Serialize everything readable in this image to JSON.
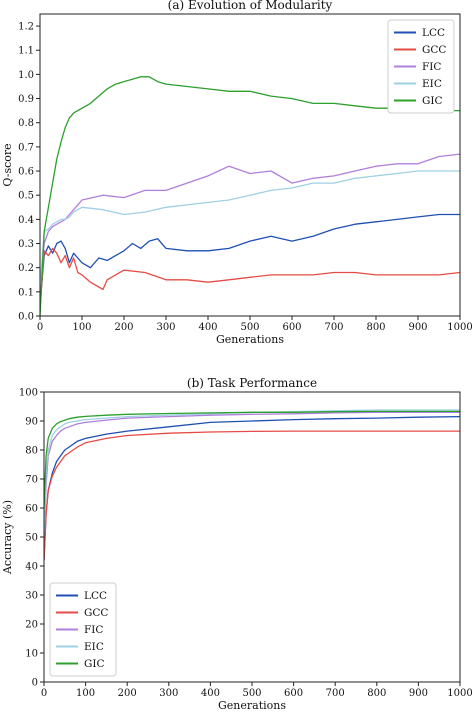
{
  "chart_data": [
    {
      "type": "line",
      "title": "(a) Evolution of Modularity",
      "xlabel": "Generations",
      "ylabel": "Q-score",
      "xlim": [
        0,
        1000
      ],
      "ylim": [
        0,
        1.25
      ],
      "xticks": [
        0,
        100,
        200,
        300,
        400,
        500,
        600,
        700,
        800,
        900,
        1000
      ],
      "yticks": [
        0.0,
        0.1,
        0.2,
        0.3,
        0.4,
        0.5,
        0.6,
        0.7,
        0.8,
        0.9,
        1.0,
        1.1,
        1.2
      ],
      "ytick_labels": [
        "0.0",
        "0.1",
        "0.2",
        "0.3",
        "0.4",
        "0.5",
        "0.6",
        "0.7",
        "0.8",
        "0.9",
        "1.0",
        "1.1",
        "1.2"
      ],
      "legend": "top-right",
      "grid": false,
      "series": [
        {
          "name": "LCC",
          "color": "#1f4fb4",
          "x": [
            0,
            10,
            20,
            30,
            40,
            50,
            60,
            70,
            80,
            90,
            100,
            120,
            140,
            160,
            180,
            200,
            220,
            240,
            260,
            280,
            300,
            350,
            400,
            450,
            500,
            550,
            600,
            650,
            700,
            750,
            800,
            850,
            900,
            950,
            1000
          ],
          "y": [
            0.05,
            0.25,
            0.29,
            0.26,
            0.3,
            0.31,
            0.28,
            0.22,
            0.26,
            0.24,
            0.22,
            0.2,
            0.24,
            0.23,
            0.25,
            0.27,
            0.3,
            0.28,
            0.31,
            0.32,
            0.28,
            0.27,
            0.27,
            0.28,
            0.31,
            0.33,
            0.31,
            0.33,
            0.36,
            0.38,
            0.39,
            0.4,
            0.41,
            0.42,
            0.42
          ]
        },
        {
          "name": "GCC",
          "color": "#e64c45",
          "x": [
            0,
            10,
            20,
            30,
            40,
            50,
            60,
            70,
            80,
            90,
            100,
            120,
            140,
            150,
            160,
            180,
            200,
            250,
            300,
            350,
            400,
            450,
            500,
            550,
            600,
            650,
            700,
            750,
            800,
            850,
            900,
            950,
            1000
          ],
          "y": [
            0.03,
            0.27,
            0.25,
            0.28,
            0.26,
            0.22,
            0.25,
            0.2,
            0.24,
            0.18,
            0.17,
            0.14,
            0.12,
            0.11,
            0.15,
            0.17,
            0.19,
            0.18,
            0.15,
            0.15,
            0.14,
            0.15,
            0.16,
            0.17,
            0.17,
            0.17,
            0.18,
            0.18,
            0.17,
            0.17,
            0.17,
            0.17,
            0.18
          ]
        },
        {
          "name": "FIC",
          "color": "#b07fdc",
          "x": [
            0,
            10,
            20,
            30,
            40,
            50,
            60,
            70,
            80,
            90,
            100,
            150,
            200,
            250,
            300,
            350,
            400,
            450,
            500,
            550,
            600,
            650,
            700,
            750,
            800,
            850,
            900,
            950,
            1000
          ],
          "y": [
            0.1,
            0.3,
            0.35,
            0.37,
            0.38,
            0.39,
            0.4,
            0.42,
            0.44,
            0.46,
            0.48,
            0.5,
            0.49,
            0.52,
            0.52,
            0.55,
            0.58,
            0.62,
            0.59,
            0.6,
            0.55,
            0.57,
            0.58,
            0.6,
            0.62,
            0.63,
            0.63,
            0.66,
            0.67
          ]
        },
        {
          "name": "EIC",
          "color": "#9fd0e5",
          "x": [
            0,
            10,
            20,
            30,
            40,
            50,
            60,
            70,
            80,
            90,
            100,
            150,
            200,
            250,
            300,
            350,
            400,
            450,
            500,
            550,
            600,
            650,
            700,
            750,
            800,
            850,
            900,
            950,
            1000
          ],
          "y": [
            0.12,
            0.35,
            0.36,
            0.38,
            0.39,
            0.4,
            0.4,
            0.41,
            0.43,
            0.44,
            0.45,
            0.44,
            0.42,
            0.43,
            0.45,
            0.46,
            0.47,
            0.48,
            0.5,
            0.52,
            0.53,
            0.55,
            0.55,
            0.57,
            0.58,
            0.59,
            0.6,
            0.6,
            0.6
          ]
        },
        {
          "name": "GIC",
          "color": "#2ca02c",
          "x": [
            0,
            10,
            20,
            30,
            40,
            50,
            60,
            70,
            80,
            90,
            100,
            120,
            140,
            160,
            180,
            200,
            220,
            240,
            260,
            280,
            300,
            350,
            400,
            450,
            500,
            550,
            600,
            650,
            700,
            750,
            800,
            850,
            900,
            950,
            1000
          ],
          "y": [
            0.0,
            0.35,
            0.45,
            0.55,
            0.65,
            0.72,
            0.78,
            0.82,
            0.84,
            0.85,
            0.86,
            0.88,
            0.91,
            0.94,
            0.96,
            0.97,
            0.98,
            0.99,
            0.99,
            0.97,
            0.96,
            0.95,
            0.94,
            0.93,
            0.93,
            0.91,
            0.9,
            0.88,
            0.88,
            0.87,
            0.86,
            0.86,
            0.85,
            0.85,
            0.85
          ]
        }
      ]
    },
    {
      "type": "line",
      "title": "(b) Task Performance",
      "xlabel": "Generations",
      "ylabel": "Accuracy (%)",
      "xlim": [
        0,
        1000
      ],
      "ylim": [
        0,
        100
      ],
      "xticks": [
        0,
        100,
        200,
        300,
        400,
        500,
        600,
        700,
        800,
        900,
        1000
      ],
      "yticks": [
        0,
        10,
        20,
        30,
        40,
        50,
        60,
        70,
        80,
        90,
        100
      ],
      "ytick_labels": [
        "0",
        "10",
        "20",
        "30",
        "40",
        "50",
        "60",
        "70",
        "80",
        "90",
        "100"
      ],
      "legend": "lower-left",
      "grid": false,
      "series": [
        {
          "name": "LCC",
          "color": "#1f4fb4",
          "x": [
            0,
            5,
            10,
            20,
            30,
            40,
            50,
            60,
            80,
            100,
            150,
            200,
            300,
            400,
            500,
            600,
            700,
            800,
            900,
            1000
          ],
          "y": [
            42,
            58,
            66,
            72,
            76,
            78,
            80,
            81,
            83,
            84,
            85.5,
            86.5,
            88,
            89.5,
            90,
            90.5,
            90.8,
            91,
            91.3,
            91.5
          ]
        },
        {
          "name": "GCC",
          "color": "#e64c45",
          "x": [
            0,
            5,
            10,
            20,
            30,
            40,
            50,
            60,
            80,
            100,
            150,
            200,
            300,
            400,
            500,
            600,
            700,
            800,
            900,
            1000
          ],
          "y": [
            42,
            58,
            66,
            71,
            74,
            76,
            78,
            79,
            81,
            82.5,
            84,
            85,
            85.8,
            86.2,
            86.4,
            86.5,
            86.5,
            86.5,
            86.5,
            86.5
          ]
        },
        {
          "name": "FIC",
          "color": "#b07fdc",
          "x": [
            0,
            5,
            10,
            20,
            30,
            40,
            50,
            60,
            80,
            100,
            150,
            200,
            300,
            400,
            500,
            600,
            700,
            800,
            900,
            1000
          ],
          "y": [
            50,
            68,
            78,
            83,
            85,
            86.5,
            87.5,
            88,
            89,
            89.5,
            90.3,
            91,
            91.5,
            92,
            92.3,
            92.5,
            92.8,
            93,
            93,
            93
          ]
        },
        {
          "name": "EIC",
          "color": "#9fd0e5",
          "x": [
            0,
            5,
            10,
            20,
            30,
            40,
            50,
            60,
            80,
            100,
            150,
            200,
            300,
            400,
            500,
            600,
            700,
            800,
            900,
            1000
          ],
          "y": [
            52,
            72,
            80,
            85,
            87,
            88,
            89,
            89.5,
            90,
            90.5,
            91,
            91.5,
            92,
            92.5,
            93,
            93.2,
            93.5,
            93.8,
            93.8,
            93.8
          ]
        },
        {
          "name": "GIC",
          "color": "#2ca02c",
          "x": [
            0,
            5,
            10,
            20,
            30,
            40,
            50,
            60,
            80,
            100,
            150,
            200,
            300,
            400,
            500,
            600,
            700,
            800,
            900,
            1000
          ],
          "y": [
            60,
            78,
            84,
            87.5,
            89,
            89.8,
            90.3,
            90.8,
            91.3,
            91.6,
            92,
            92.3,
            92.6,
            92.8,
            93,
            93,
            93.2,
            93.3,
            93.3,
            93.3
          ]
        }
      ]
    }
  ]
}
